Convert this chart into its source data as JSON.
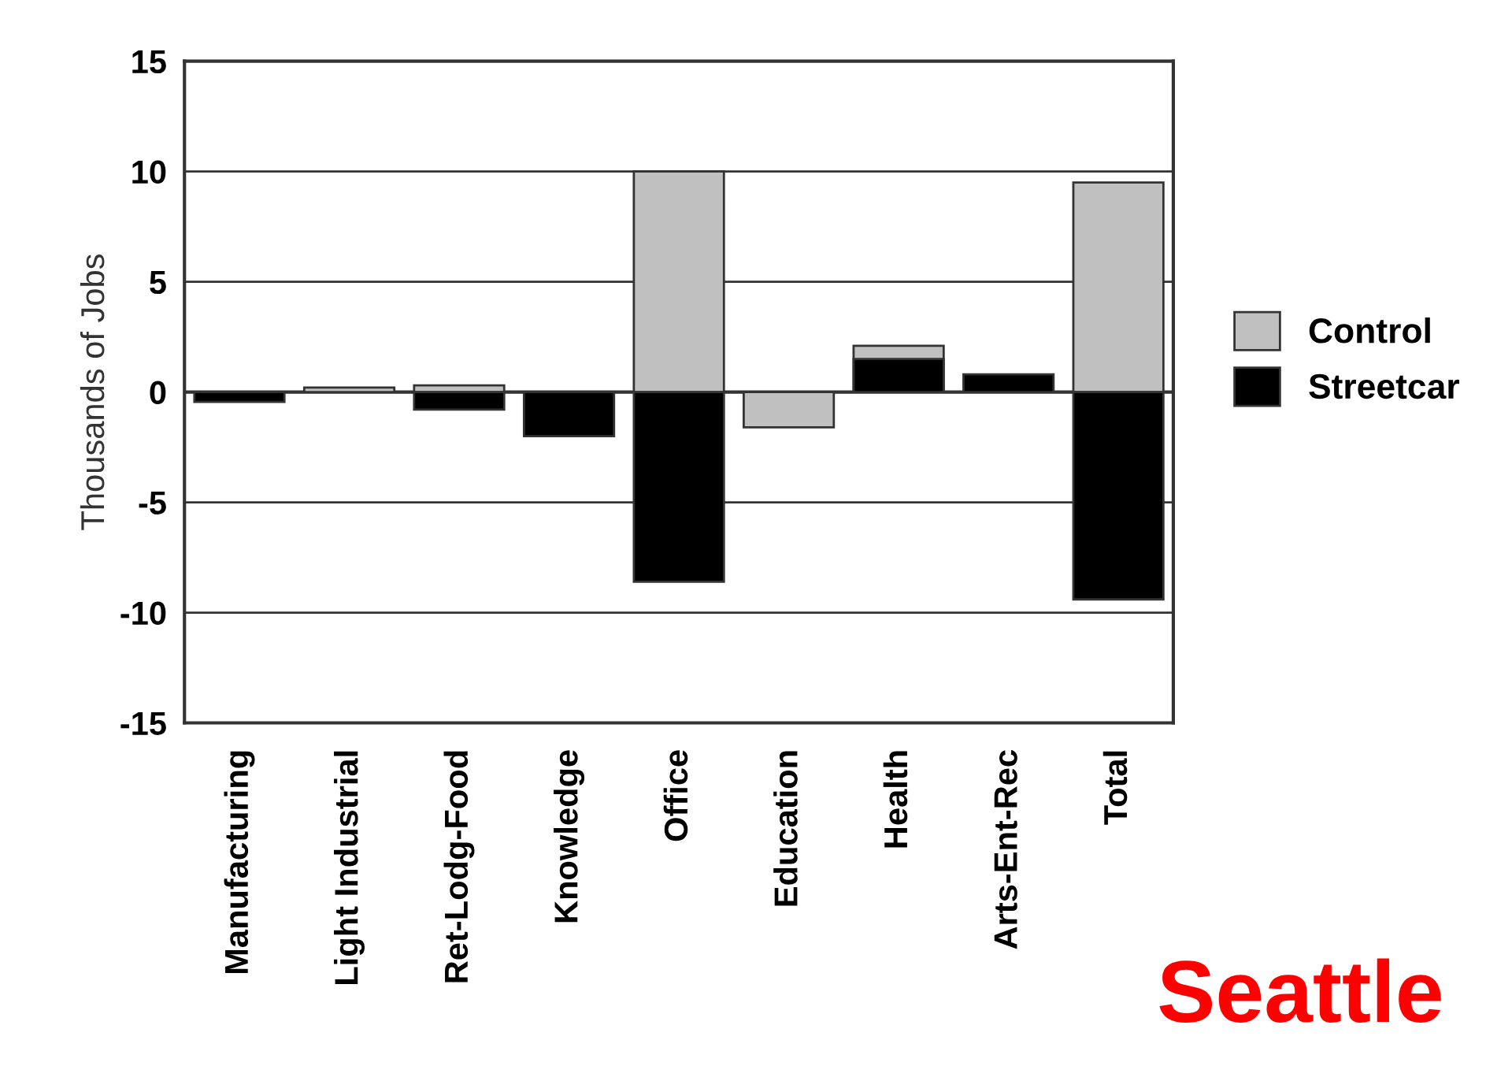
{
  "chart_data": {
    "type": "bar",
    "ylabel": "Thousands of Jobs",
    "categories": [
      "Manufacturing",
      "Light Industrial",
      "Ret-Lodg-Food",
      "Knowledge",
      "Office",
      "Education",
      "Health",
      "Arts-Ent-Rec",
      "Total"
    ],
    "series": [
      {
        "name": "Control",
        "color": "#c0c0c0",
        "values": [
          null,
          0.2,
          0.3,
          null,
          10.0,
          -1.6,
          2.1,
          null,
          9.5
        ]
      },
      {
        "name": "Streetcar",
        "color": "#000000",
        "values": [
          -0.45,
          null,
          -0.8,
          -2.0,
          -8.6,
          null,
          1.5,
          0.8,
          -9.4
        ]
      }
    ],
    "ylim": [
      -15,
      15
    ],
    "yticks": [
      -15,
      -10,
      -5,
      0,
      5,
      10,
      15
    ],
    "grid": "y",
    "legend": "right",
    "annotations": [
      "Seattle"
    ]
  }
}
